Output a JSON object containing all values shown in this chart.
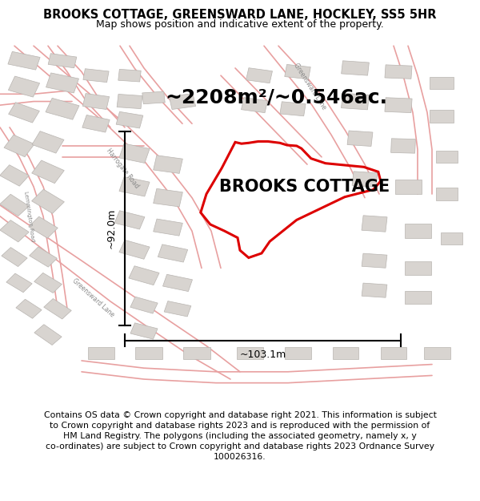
{
  "title": "BROOKS COTTAGE, GREENSWARD LANE, HOCKLEY, SS5 5HR",
  "subtitle": "Map shows position and indicative extent of the property.",
  "area_label": "~2208m²/~0.546ac.",
  "property_label": "BROOKS COTTAGE",
  "height_label": "~92.0m",
  "width_label": "~103.1m",
  "footer_line1": "Contains OS data © Crown copyright and database right 2021. This information is subject",
  "footer_line2": "to Crown copyright and database rights 2023 and is reproduced with the permission of",
  "footer_line3": "HM Land Registry. The polygons (including the associated geometry, namely x, y",
  "footer_line4": "co-ordinates) are subject to Crown copyright and database rights 2023 Ordnance Survey",
  "footer_line5": "100026316.",
  "map_bg": "#f0ebe8",
  "red_color": "#dd0000",
  "road_color": "#e8a0a0",
  "building_color": "#d8d4d0",
  "building_edge": "#b8b4b0",
  "title_fontsize": 10.5,
  "subtitle_fontsize": 9,
  "area_fontsize": 18,
  "property_fontsize": 15,
  "measure_fontsize": 9,
  "footer_fontsize": 7.8
}
